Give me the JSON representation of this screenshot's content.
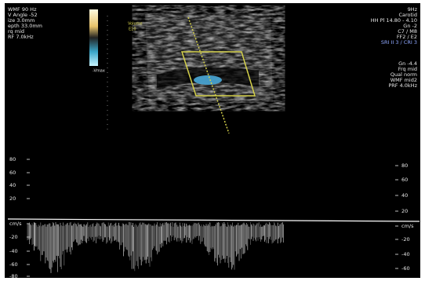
{
  "left_info": [
    "WMF 90 Hz",
    "V Angle -52",
    "ize 3.0mm",
    "epth 33.0mm",
    "rq mid",
    "RF 7.0kHz"
  ],
  "colorbar": {
    "top": "Volume",
    "sub": "E10",
    "bottom": "-Vmax"
  },
  "right_info": [
    "9Hz",
    "Carotid",
    "HH Pl 14.80 - 4.10",
    "Gn -2",
    "C7 / M8",
    "FF2 / E2",
    "SRI II 3 / CRI 3",
    "Gn -4.4",
    "Frq mid",
    "Qual norm",
    "WMF mid2",
    "PRF 4.0kHz"
  ],
  "left_scale": [
    "80",
    "60",
    "40",
    "20",
    "cm/s",
    "-20",
    "-40",
    "-60",
    "-80"
  ],
  "right_scale": [
    "80",
    "60",
    "40",
    "20",
    "cm/s",
    "-20",
    "-40",
    "-60"
  ]
}
